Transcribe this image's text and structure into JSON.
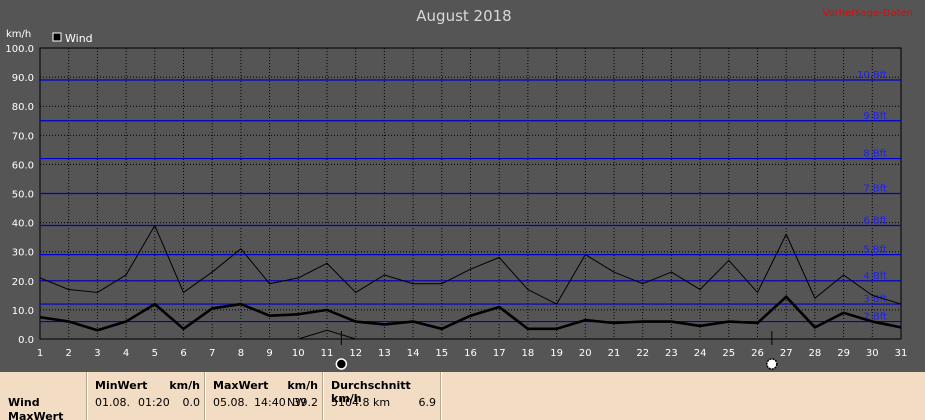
{
  "title": "August 2018",
  "warning_label": "Vorhersage-Daten",
  "legend": {
    "label": "Wind"
  },
  "colors": {
    "background": "#555555",
    "beaufort_line": "#0000cc",
    "beaufort_text": "#2020ee",
    "series": "#000000",
    "panel": "#f2dcc4",
    "warning": "#ee0000"
  },
  "chart_data": {
    "type": "line",
    "ylabel": "km/h",
    "ylim": [
      0,
      100
    ],
    "yticks": [
      "0.0",
      "10.0",
      "20.0",
      "30.0",
      "40.0",
      "50.0",
      "60.0",
      "70.0",
      "80.0",
      "90.0",
      "100.0"
    ],
    "x": [
      1,
      2,
      3,
      4,
      5,
      6,
      7,
      8,
      9,
      10,
      11,
      12,
      13,
      14,
      15,
      16,
      17,
      18,
      19,
      20,
      21,
      22,
      23,
      24,
      25,
      26,
      27,
      28,
      29,
      30,
      31
    ],
    "grid": true,
    "legend_position": "top-left",
    "series": [
      {
        "name": "Wind",
        "role": "max",
        "values": [
          21,
          17,
          16,
          22,
          39,
          16,
          23,
          31,
          19,
          21,
          26,
          16,
          22,
          19,
          19,
          24,
          28,
          17,
          12,
          29,
          23,
          19,
          23,
          17,
          27,
          16,
          36,
          14,
          22,
          15,
          12
        ]
      },
      {
        "name": "Wind",
        "role": "avg",
        "values": [
          7.5,
          6,
          3,
          6,
          12,
          3.5,
          10.5,
          12,
          8,
          8.5,
          10,
          6,
          5,
          6,
          3.5,
          8,
          11,
          3.5,
          3.5,
          6.5,
          5.5,
          6,
          6,
          4.5,
          6,
          5.5,
          14.5,
          4,
          9,
          6,
          4
        ]
      }
    ],
    "beaufort": [
      {
        "label": "2 Bft",
        "value": 6
      },
      {
        "label": "3 Bft",
        "value": 12
      },
      {
        "label": "4 Bft",
        "value": 20
      },
      {
        "label": "5 Bft",
        "value": 29
      },
      {
        "label": "6 Bft",
        "value": 39
      },
      {
        "label": "7 Bft",
        "value": 50
      },
      {
        "label": "8 Bft",
        "value": 62
      },
      {
        "label": "9 Bft",
        "value": 75
      },
      {
        "label": "10 Bft",
        "value": 89
      }
    ],
    "direction_marks": [
      {
        "x": 10,
        "y": 0
      },
      {
        "x": 11,
        "y": 3
      },
      {
        "x": 12,
        "y": 0
      }
    ],
    "events": [
      {
        "x": 11.5,
        "icon": "new-moon-icon"
      },
      {
        "x": 26.5,
        "icon": "full-moon-icon"
      }
    ]
  },
  "summary": {
    "row_label": "Wind",
    "row_label_2": "MaxWert",
    "min": {
      "header": "MinWert",
      "unit": "km/h",
      "date": "01.08.",
      "time": "01:20",
      "value": "0.0"
    },
    "max": {
      "header": "MaxWert",
      "unit": "km/h",
      "date": "05.08.",
      "time": "14:40",
      "direction": "NW",
      "value": "39.2"
    },
    "avg": {
      "header": "Durchschnitt km/h",
      "distance": "5104.8 km",
      "value": "6.9"
    }
  }
}
